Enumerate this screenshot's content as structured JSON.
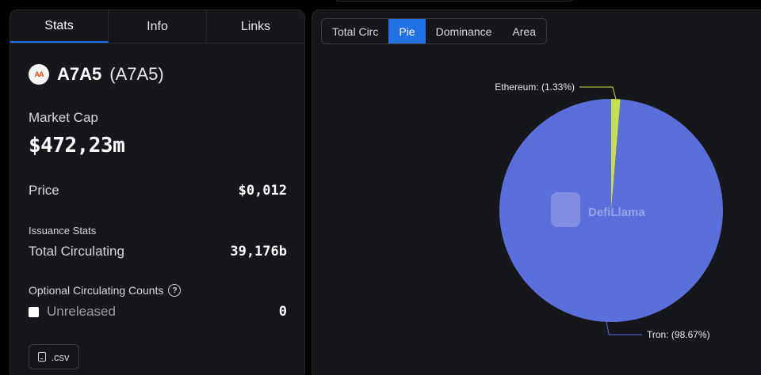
{
  "tabs": [
    "Stats",
    "Info",
    "Links"
  ],
  "token": {
    "name": "A7A5",
    "symbol": "(A7A5)",
    "logo_text": "AA"
  },
  "market_cap": {
    "label": "Market Cap",
    "value": "$472,23m"
  },
  "price": {
    "label": "Price",
    "value": "$0,012"
  },
  "issuance": {
    "label": "Issuance Stats",
    "total_label": "Total Circulating",
    "total_value": "39,176b"
  },
  "optional": {
    "label": "Optional Circulating Counts",
    "help": "?",
    "unreleased_label": "Unreleased",
    "unreleased_value": "0"
  },
  "csv_label": ".csv",
  "chart_tabs": [
    "Total Circ",
    "Pie",
    "Dominance",
    "Area"
  ],
  "active_chart_tab": "Pie",
  "watermark": "DefiLlama",
  "colors": {
    "accent": "#2172e5",
    "tron": "#5b6fdb",
    "ethereum": "#c6e04e"
  },
  "chart_data": {
    "type": "pie",
    "slices": [
      {
        "name": "Ethereum",
        "value": 1.33,
        "label": "Ethereum: (1.33%)"
      },
      {
        "name": "Tron",
        "value": 98.67,
        "label": "Tron: (98.67%)"
      }
    ]
  }
}
